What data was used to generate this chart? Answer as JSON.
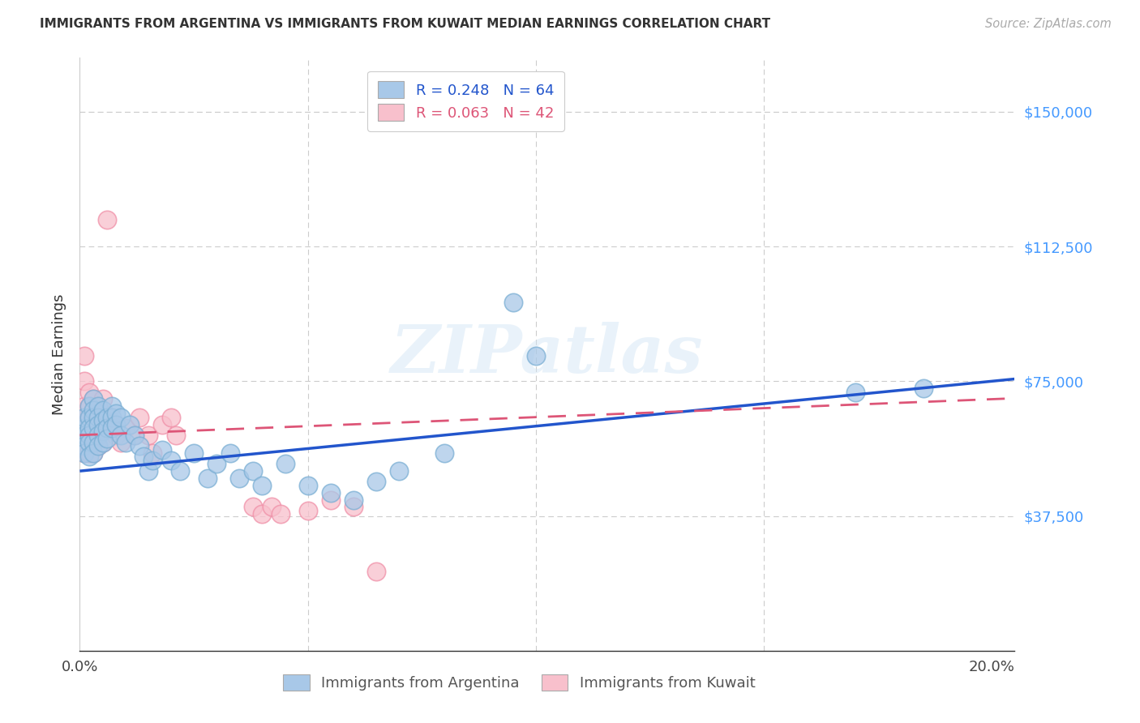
{
  "title": "IMMIGRANTS FROM ARGENTINA VS IMMIGRANTS FROM KUWAIT MEDIAN EARNINGS CORRELATION CHART",
  "source": "Source: ZipAtlas.com",
  "ylabel": "Median Earnings",
  "ytick_vals": [
    0,
    37500,
    75000,
    112500,
    150000
  ],
  "ytick_labels": [
    "",
    "$37,500",
    "$75,000",
    "$112,500",
    "$150,000"
  ],
  "xlim": [
    0.0,
    0.205
  ],
  "ylim": [
    0,
    165000
  ],
  "argentina_color": "#a8c8e8",
  "argentina_edge_color": "#7bafd4",
  "kuwait_color": "#f8c0cc",
  "kuwait_edge_color": "#f090a8",
  "argentina_line_color": "#2255cc",
  "kuwait_line_color": "#dd5577",
  "watermark": "ZIPatlas",
  "arg_line_intercept": 50000,
  "arg_line_slope": 125000,
  "kuw_line_intercept": 60000,
  "kuw_line_slope": 50000,
  "argentina_x": [
    0.001,
    0.001,
    0.001,
    0.001,
    0.001,
    0.002,
    0.002,
    0.002,
    0.002,
    0.002,
    0.002,
    0.003,
    0.003,
    0.003,
    0.003,
    0.003,
    0.003,
    0.004,
    0.004,
    0.004,
    0.004,
    0.004,
    0.005,
    0.005,
    0.005,
    0.005,
    0.006,
    0.006,
    0.006,
    0.007,
    0.007,
    0.007,
    0.008,
    0.008,
    0.009,
    0.009,
    0.01,
    0.011,
    0.012,
    0.013,
    0.014,
    0.015,
    0.016,
    0.018,
    0.02,
    0.022,
    0.025,
    0.028,
    0.03,
    0.033,
    0.035,
    0.038,
    0.04,
    0.045,
    0.05,
    0.055,
    0.06,
    0.065,
    0.07,
    0.08,
    0.095,
    0.1,
    0.17,
    0.185
  ],
  "argentina_y": [
    62000,
    65000,
    60000,
    57000,
    55000,
    68000,
    65000,
    62000,
    60000,
    58000,
    54000,
    70000,
    67000,
    65000,
    62000,
    58000,
    55000,
    68000,
    65000,
    63000,
    60000,
    57000,
    67000,
    64000,
    61000,
    58000,
    65000,
    62000,
    59000,
    68000,
    65000,
    62000,
    66000,
    63000,
    65000,
    60000,
    58000,
    63000,
    60000,
    57000,
    54000,
    50000,
    53000,
    56000,
    53000,
    50000,
    55000,
    48000,
    52000,
    55000,
    48000,
    50000,
    46000,
    52000,
    46000,
    44000,
    42000,
    47000,
    50000,
    55000,
    97000,
    82000,
    72000,
    73000
  ],
  "kuwait_x": [
    0.001,
    0.001,
    0.001,
    0.001,
    0.001,
    0.001,
    0.001,
    0.002,
    0.002,
    0.002,
    0.002,
    0.002,
    0.003,
    0.003,
    0.003,
    0.003,
    0.004,
    0.004,
    0.004,
    0.005,
    0.005,
    0.005,
    0.006,
    0.007,
    0.008,
    0.009,
    0.01,
    0.012,
    0.013,
    0.015,
    0.016,
    0.018,
    0.02,
    0.021,
    0.038,
    0.04,
    0.042,
    0.044,
    0.05,
    0.055,
    0.06,
    0.065
  ],
  "kuwait_y": [
    82000,
    75000,
    68000,
    65000,
    62000,
    58000,
    55000,
    72000,
    68000,
    65000,
    60000,
    55000,
    70000,
    65000,
    60000,
    55000,
    68000,
    63000,
    57000,
    70000,
    65000,
    58000,
    120000,
    63000,
    60000,
    58000,
    62000,
    60000,
    65000,
    60000,
    55000,
    63000,
    65000,
    60000,
    40000,
    38000,
    40000,
    38000,
    39000,
    42000,
    40000,
    22000
  ]
}
